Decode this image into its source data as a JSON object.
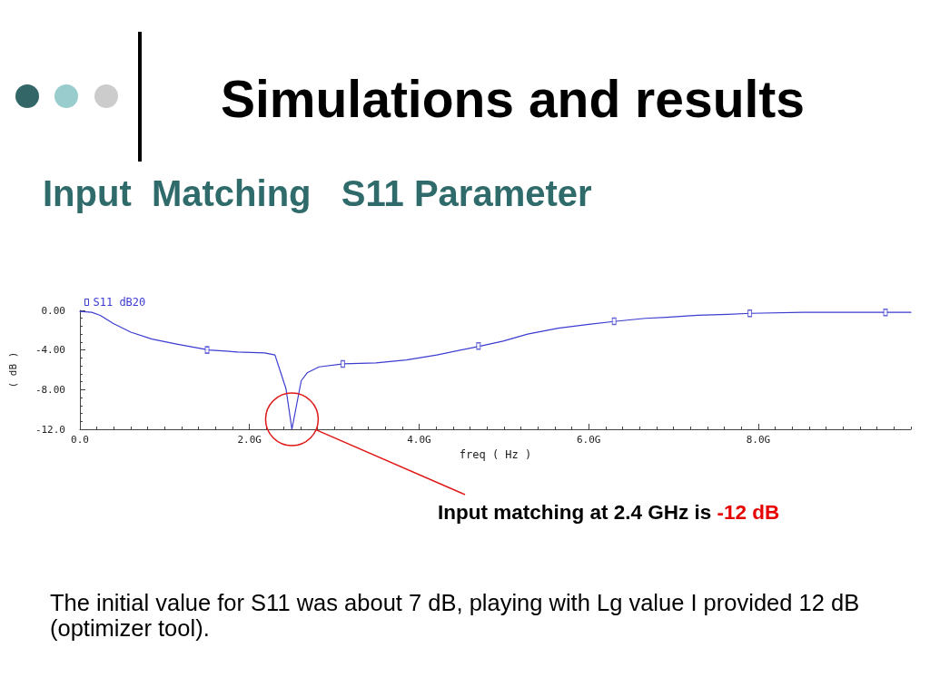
{
  "chart_data": {
    "type": "line",
    "title": "Simulations and results",
    "subtitle": "Input  Matching   S11 Parameter",
    "xlabel": "freq ( Hz )",
    "ylabel": "( dB )",
    "xlim": [
      0,
      9.8
    ],
    "ylim": [
      -12,
      0
    ],
    "xticks": [
      {
        "value": 0,
        "label": "0.0"
      },
      {
        "value": 2,
        "label": "2.0G"
      },
      {
        "value": 4,
        "label": "4.0G"
      },
      {
        "value": 6,
        "label": "6.0G"
      },
      {
        "value": 8,
        "label": "8.0G"
      }
    ],
    "yticks": [
      {
        "value": -12,
        "label": "-12.0"
      },
      {
        "value": -8,
        "label": "-8.00"
      },
      {
        "value": -4,
        "label": "-4.00"
      },
      {
        "value": 0,
        "label": "0.00"
      }
    ],
    "legend": "top left",
    "marker": "none",
    "line_style": "solid",
    "series": [
      {
        "name": "S11 dB20",
        "color": "#3c3cd0",
        "x": [
          0,
          0.14,
          0.24,
          0.39,
          0.6,
          0.85,
          1.14,
          1.52,
          1.86,
          2.18,
          2.3,
          2.43,
          2.5,
          2.61,
          2.68,
          2.82,
          3.11,
          3.49,
          3.85,
          4.21,
          4.72,
          4.99,
          5.28,
          5.64,
          6.0,
          6.32,
          6.67,
          6.92,
          7.28,
          7.64,
          7.91,
          8.53,
          9.07,
          9.5,
          9.8
        ],
        "values": [
          -0.1,
          -0.2,
          -0.5,
          -1.3,
          -2.2,
          -2.9,
          -3.4,
          -4.0,
          -4.2,
          -4.3,
          -4.5,
          -7.9,
          -12.0,
          -7.1,
          -6.3,
          -5.7,
          -5.4,
          -5.3,
          -5.0,
          -4.5,
          -3.6,
          -3.1,
          -2.4,
          -1.8,
          -1.4,
          -1.1,
          -0.8,
          -0.7,
          -0.5,
          -0.4,
          -0.3,
          -0.2,
          -0.2,
          -0.2,
          -0.2
        ]
      },
      {
        "type": "scatter",
        "marker": "square",
        "color": "#3c3cd0",
        "x": [
          1.5,
          3.1,
          4.7,
          6.3,
          7.9,
          9.5
        ],
        "values": [
          -4.0,
          -5.4,
          -3.6,
          -1.1,
          -0.3,
          -0.2
        ]
      }
    ],
    "annotations": [
      "Input matching at 2.4 GHz is",
      "-12 dB",
      "The initial value for S11 was about 7 dB, playing with Lg value I provided 12 dB (optimizer tool)."
    ]
  }
}
